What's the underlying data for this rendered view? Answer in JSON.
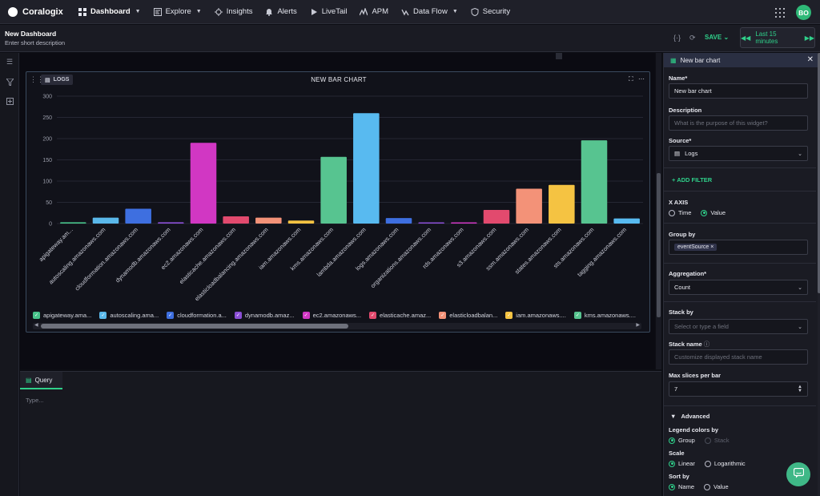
{
  "topnav": {
    "brand": "Coralogix",
    "items": [
      {
        "label": "Dashboard",
        "icon": "grid-icon",
        "active": true
      },
      {
        "label": "Explore",
        "icon": "explore-icon"
      },
      {
        "label": "Insights",
        "icon": "insights-icon"
      },
      {
        "label": "Alerts",
        "icon": "bell-icon"
      },
      {
        "label": "LiveTail",
        "icon": "play-icon"
      },
      {
        "label": "APM",
        "icon": "apm-icon"
      },
      {
        "label": "Data Flow",
        "icon": "dataflow-icon"
      },
      {
        "label": "Security",
        "icon": "shield-icon"
      }
    ],
    "avatar": "BO"
  },
  "dashboard": {
    "title": "New Dashboard",
    "description": "Enter short description",
    "save_label": "SAVE",
    "time_range": "Last 15 minutes"
  },
  "widget": {
    "tag": "LOGS",
    "title": "NEW BAR CHART"
  },
  "chart_data": {
    "type": "bar",
    "categories": [
      "apigateway.am...",
      "autoscaling.amazonaws.com",
      "cloudformation.amazonaws.com",
      "dynamodb.amazonaws.com",
      "ec2.amazonaws.com",
      "elasticache.amazonaws.com",
      "elasticloadbalancing.amazonaws.com",
      "iam.amazonaws.com",
      "kms.amazonaws.com",
      "lambda.amazonaws.com",
      "logs.amazonaws.com",
      "organizations.amazonaws.com",
      "rds.amazonaws.com",
      "s3.amazonaws.com",
      "ssm.amazonaws.com",
      "states.amazonaws.com",
      "sts.amazonaws.com",
      "tagging.amazonaws.com"
    ],
    "values": [
      3,
      14,
      35,
      3,
      190,
      17,
      14,
      7,
      157,
      260,
      13,
      0,
      2,
      32,
      82,
      91,
      196,
      12
    ],
    "colors": [
      "#47c28a",
      "#5ab8ea",
      "#3e6fe0",
      "#8b4fd6",
      "#d137c3",
      "#e24a6e",
      "#f39278",
      "#f5c342",
      "#57c490",
      "#58baf0",
      "#3e6fe0",
      "#8b4fd6",
      "#d137c3",
      "#e24a6e",
      "#f39278",
      "#f5c342",
      "#57c490",
      "#58baf0"
    ],
    "yticks": [
      0,
      50,
      100,
      150,
      200,
      250,
      300
    ],
    "ylim": [
      0,
      300
    ],
    "legend": [
      {
        "label": "apigateway.ama...",
        "color": "#47c28a"
      },
      {
        "label": "autoscaling.ama...",
        "color": "#5ab8ea"
      },
      {
        "label": "cloudformation.a...",
        "color": "#3e6fe0"
      },
      {
        "label": "dynamodb.amaz...",
        "color": "#8b4fd6"
      },
      {
        "label": "ec2.amazonaws...",
        "color": "#d137c3"
      },
      {
        "label": "elasticache.amaz...",
        "color": "#e24a6e"
      },
      {
        "label": "elasticloadbalan...",
        "color": "#f39278"
      },
      {
        "label": "iam.amazonaws....",
        "color": "#f5c342"
      },
      {
        "label": "kms.amazonaws....",
        "color": "#57c490"
      },
      {
        "label": "l",
        "color": "#58baf0"
      }
    ]
  },
  "query": {
    "tab": "Query",
    "placeholder": "Type..."
  },
  "panel": {
    "title": "New bar chart",
    "name_label": "Name*",
    "name_value": "New bar chart",
    "description_label": "Description",
    "description_placeholder": "What is the purpose of this widget?",
    "source_label": "Source*",
    "source_value": "Logs",
    "add_filter": "ADD FILTER",
    "x_axis_label": "X AXIS",
    "x_axis_time": "Time",
    "x_axis_value": "Value",
    "group_by_label": "Group by",
    "group_by_chip": "eventSource",
    "aggregation_label": "Aggregation*",
    "aggregation_value": "Count",
    "stack_by_label": "Stack by",
    "stack_by_placeholder": "Select or type a field",
    "stack_name_label": "Stack name",
    "stack_name_placeholder": "Customize displayed stack name",
    "max_slices_label": "Max slices per bar",
    "max_slices_value": "7",
    "advanced_label": "Advanced",
    "legend_colors_label": "Legend colors by",
    "legend_group": "Group",
    "legend_stack": "Stack",
    "scale_label": "Scale",
    "scale_linear": "Linear",
    "scale_log": "Logarithmic",
    "sort_by_label": "Sort by",
    "sort_name": "Name",
    "sort_value": "Value"
  }
}
